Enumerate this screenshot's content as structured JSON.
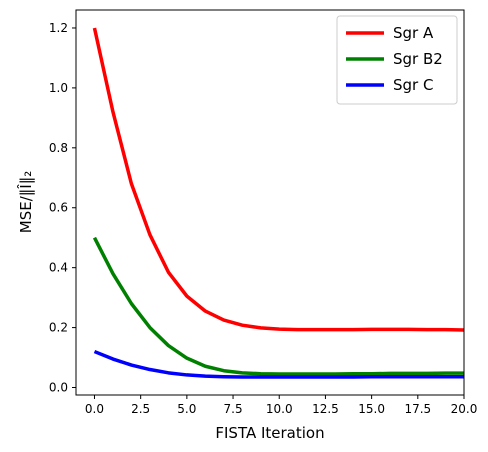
{
  "chart_data": {
    "type": "line",
    "title": "",
    "xlabel": "FISTA Iteration",
    "ylabel": "MSE/‖Î‖₂",
    "xlim": [
      -1,
      20
    ],
    "ylim": [
      -0.025,
      1.26
    ],
    "x_ticks": [
      0.0,
      2.5,
      5.0,
      7.5,
      10.0,
      12.5,
      15.0,
      17.5,
      20.0
    ],
    "x_tick_labels": [
      "0.0",
      "2.5",
      "5.0",
      "7.5",
      "10.0",
      "12.5",
      "15.0",
      "17.5",
      "20.0"
    ],
    "y_ticks": [
      0.0,
      0.2,
      0.4,
      0.6,
      0.8,
      1.0,
      1.2
    ],
    "y_tick_labels": [
      "0.0",
      "0.2",
      "0.4",
      "0.6",
      "0.8",
      "1.0",
      "1.2"
    ],
    "grid": false,
    "legend_position": "top-right",
    "x": [
      0,
      1,
      2,
      3,
      4,
      5,
      6,
      7,
      8,
      9,
      10,
      11,
      12,
      13,
      14,
      15,
      16,
      17,
      18,
      19,
      20
    ],
    "series": [
      {
        "name": "Sgr A",
        "color": "#ff0000",
        "values": [
          1.2,
          0.92,
          0.68,
          0.51,
          0.385,
          0.305,
          0.255,
          0.225,
          0.208,
          0.199,
          0.195,
          0.193,
          0.193,
          0.193,
          0.193,
          0.194,
          0.194,
          0.194,
          0.193,
          0.193,
          0.192
        ]
      },
      {
        "name": "Sgr B2",
        "color": "#008000",
        "values": [
          0.5,
          0.38,
          0.28,
          0.2,
          0.14,
          0.098,
          0.071,
          0.056,
          0.049,
          0.046,
          0.045,
          0.045,
          0.045,
          0.045,
          0.046,
          0.046,
          0.047,
          0.047,
          0.047,
          0.048,
          0.048
        ]
      },
      {
        "name": "Sgr C",
        "color": "#0000ff",
        "values": [
          0.12,
          0.095,
          0.075,
          0.06,
          0.049,
          0.042,
          0.038,
          0.036,
          0.035,
          0.035,
          0.035,
          0.035,
          0.035,
          0.035,
          0.035,
          0.036,
          0.036,
          0.036,
          0.036,
          0.036,
          0.036
        ]
      }
    ]
  }
}
